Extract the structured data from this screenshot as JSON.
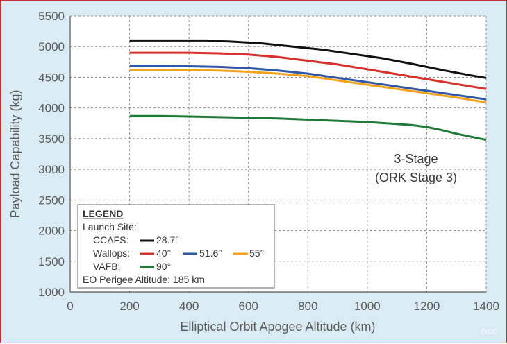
{
  "chart_data": {
    "type": "line",
    "xlabel": "Elliptical Orbit Apogee Altitude (km)",
    "ylabel": "Payload Capability (kg)",
    "xlim": [
      0,
      1400
    ],
    "ylim": [
      1000,
      5500
    ],
    "xticks": [
      0,
      200,
      400,
      600,
      800,
      1000,
      1200,
      1400
    ],
    "yticks": [
      1000,
      1500,
      2000,
      2500,
      3000,
      3500,
      4000,
      4500,
      5000,
      5500
    ],
    "grid": "dashed",
    "series": [
      {
        "name": "28.7°",
        "color": "#111111",
        "x": [
          200,
          300,
          400,
          460,
          550,
          650,
          750,
          850,
          950,
          1050,
          1150,
          1250,
          1350,
          1400
        ],
        "y": [
          5100,
          5100,
          5100,
          5100,
          5080,
          5050,
          5000,
          4950,
          4880,
          4810,
          4720,
          4620,
          4530,
          4490
        ]
      },
      {
        "name": "40°",
        "color": "#d9302a",
        "x": [
          200,
          300,
          400,
          500,
          600,
          700,
          800,
          900,
          1000,
          1100,
          1200,
          1300,
          1400
        ],
        "y": [
          4900,
          4900,
          4900,
          4890,
          4870,
          4830,
          4770,
          4710,
          4630,
          4550,
          4470,
          4390,
          4310
        ]
      },
      {
        "name": "51.6°",
        "color": "#2e57a8",
        "x": [
          200,
          300,
          400,
          500,
          600,
          700,
          800,
          900,
          1000,
          1100,
          1200,
          1300,
          1400
        ],
        "y": [
          4690,
          4690,
          4680,
          4670,
          4650,
          4610,
          4560,
          4490,
          4420,
          4350,
          4280,
          4210,
          4140
        ]
      },
      {
        "name": "55°",
        "color": "#f2a31c",
        "x": [
          200,
          300,
          400,
          500,
          600,
          700,
          800,
          900,
          1000,
          1100,
          1200,
          1300,
          1400
        ],
        "y": [
          4620,
          4620,
          4620,
          4610,
          4590,
          4560,
          4520,
          4450,
          4380,
          4310,
          4240,
          4170,
          4090
        ]
      },
      {
        "name": "90°",
        "color": "#1f7a35",
        "x": [
          200,
          300,
          400,
          500,
          600,
          700,
          800,
          900,
          1000,
          1100,
          1150,
          1200,
          1250,
          1300,
          1350,
          1400
        ],
        "y": [
          3870,
          3870,
          3860,
          3850,
          3840,
          3830,
          3810,
          3790,
          3770,
          3740,
          3720,
          3690,
          3640,
          3580,
          3530,
          3480
        ]
      }
    ],
    "annotation": [
      "3-Stage",
      "(ORK Stage 3)"
    ],
    "legend": {
      "title": "LEGEND",
      "launch_site_label": "Launch Site:",
      "rows": [
        {
          "site": "CCAFS:",
          "entries": [
            {
              "series": 0,
              "label": "28.7°"
            }
          ]
        },
        {
          "site": "Wallops:",
          "entries": [
            {
              "series": 1,
              "label": "40°"
            },
            {
              "series": 2,
              "label": "51.6°"
            },
            {
              "series": 3,
              "label": "55°"
            }
          ]
        },
        {
          "site": "VAFB:",
          "entries": [
            {
              "series": 4,
              "label": "90°"
            }
          ]
        }
      ],
      "footer": "EO Perigee Altitude: 185 km"
    },
    "credit": "OSC"
  }
}
